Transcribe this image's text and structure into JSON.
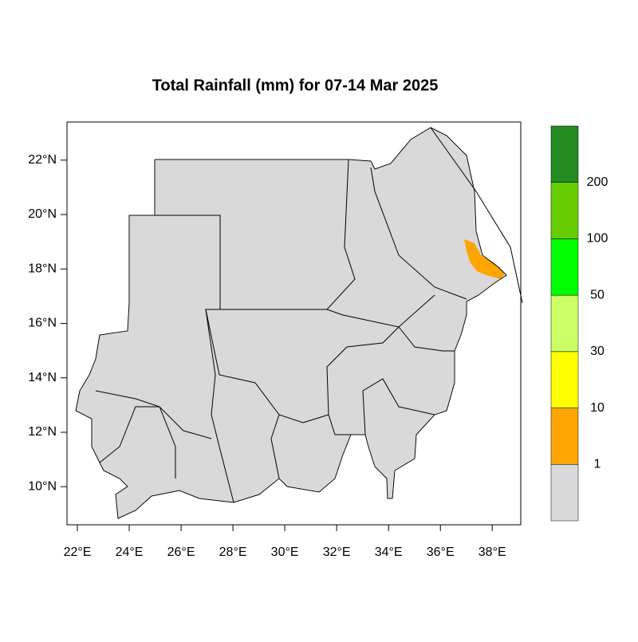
{
  "title": "Total Rainfall (mm) for 07-14 Mar 2025",
  "xlim": [
    21.6,
    39.1
  ],
  "ylim": [
    8.6,
    23.4
  ],
  "xticks": [
    {
      "value": 22,
      "label": "22°E"
    },
    {
      "value": 24,
      "label": "24°E"
    },
    {
      "value": 26,
      "label": "26°E"
    },
    {
      "value": 28,
      "label": "28°E"
    },
    {
      "value": 30,
      "label": "30°E"
    },
    {
      "value": 32,
      "label": "32°E"
    },
    {
      "value": 34,
      "label": "34°E"
    },
    {
      "value": 36,
      "label": "36°E"
    },
    {
      "value": 38,
      "label": "38°E"
    }
  ],
  "yticks": [
    {
      "value": 10,
      "label": "10°N"
    },
    {
      "value": 12,
      "label": "12°N"
    },
    {
      "value": 14,
      "label": "14°N"
    },
    {
      "value": 16,
      "label": "16°N"
    },
    {
      "value": 18,
      "label": "18°N"
    },
    {
      "value": 20,
      "label": "20°N"
    },
    {
      "value": 22,
      "label": "22°N"
    }
  ],
  "colorbar": {
    "levels": [
      1,
      10,
      30,
      50,
      100,
      200
    ],
    "colors": [
      "#d9d9d9",
      "#ffa500",
      "#ffff00",
      "#ccff66",
      "#00ff00",
      "#66cc00",
      "#228b22"
    ]
  }
}
